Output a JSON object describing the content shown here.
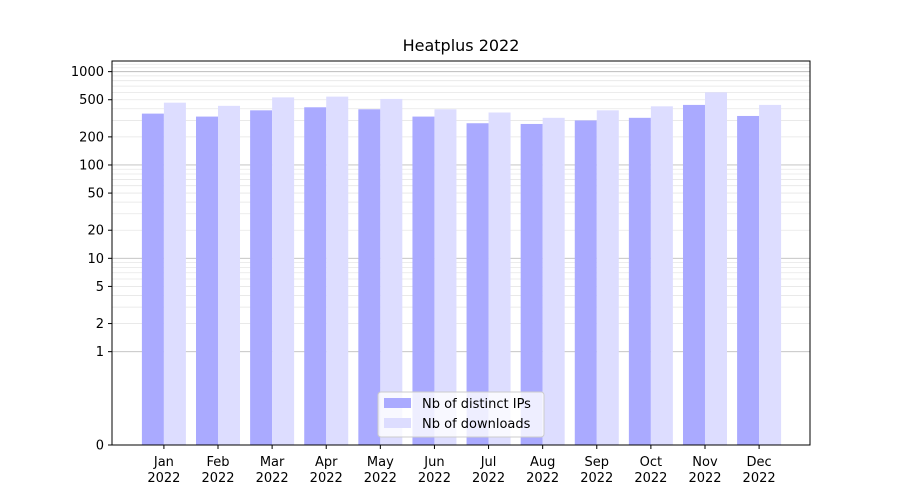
{
  "chart_data": {
    "type": "bar",
    "title": "Heatplus 2022",
    "xlabel": "",
    "ylabel": "",
    "yscale": "symlog",
    "ylim": [
      0,
      1300
    ],
    "yticks": [
      0,
      1,
      2,
      5,
      10,
      20,
      50,
      100,
      200,
      500,
      1000
    ],
    "grid": true,
    "legend_position": "bottom-center",
    "categories": [
      "Jan\n2022",
      "Feb\n2022",
      "Mar\n2022",
      "Apr\n2022",
      "May\n2022",
      "Jun\n2022",
      "Jul\n2022",
      "Aug\n2022",
      "Sep\n2022",
      "Oct\n2022",
      "Nov\n2022",
      "Dec\n2022"
    ],
    "series": [
      {
        "name": "Nb of distinct IPs",
        "color": "#aaaaff",
        "values": [
          355,
          330,
          385,
          415,
          395,
          330,
          280,
          275,
          300,
          320,
          440,
          335
        ]
      },
      {
        "name": "Nb of downloads",
        "color": "#ddddff",
        "values": [
          465,
          430,
          530,
          540,
          510,
          395,
          365,
          320,
          385,
          425,
          600,
          440
        ]
      }
    ]
  }
}
